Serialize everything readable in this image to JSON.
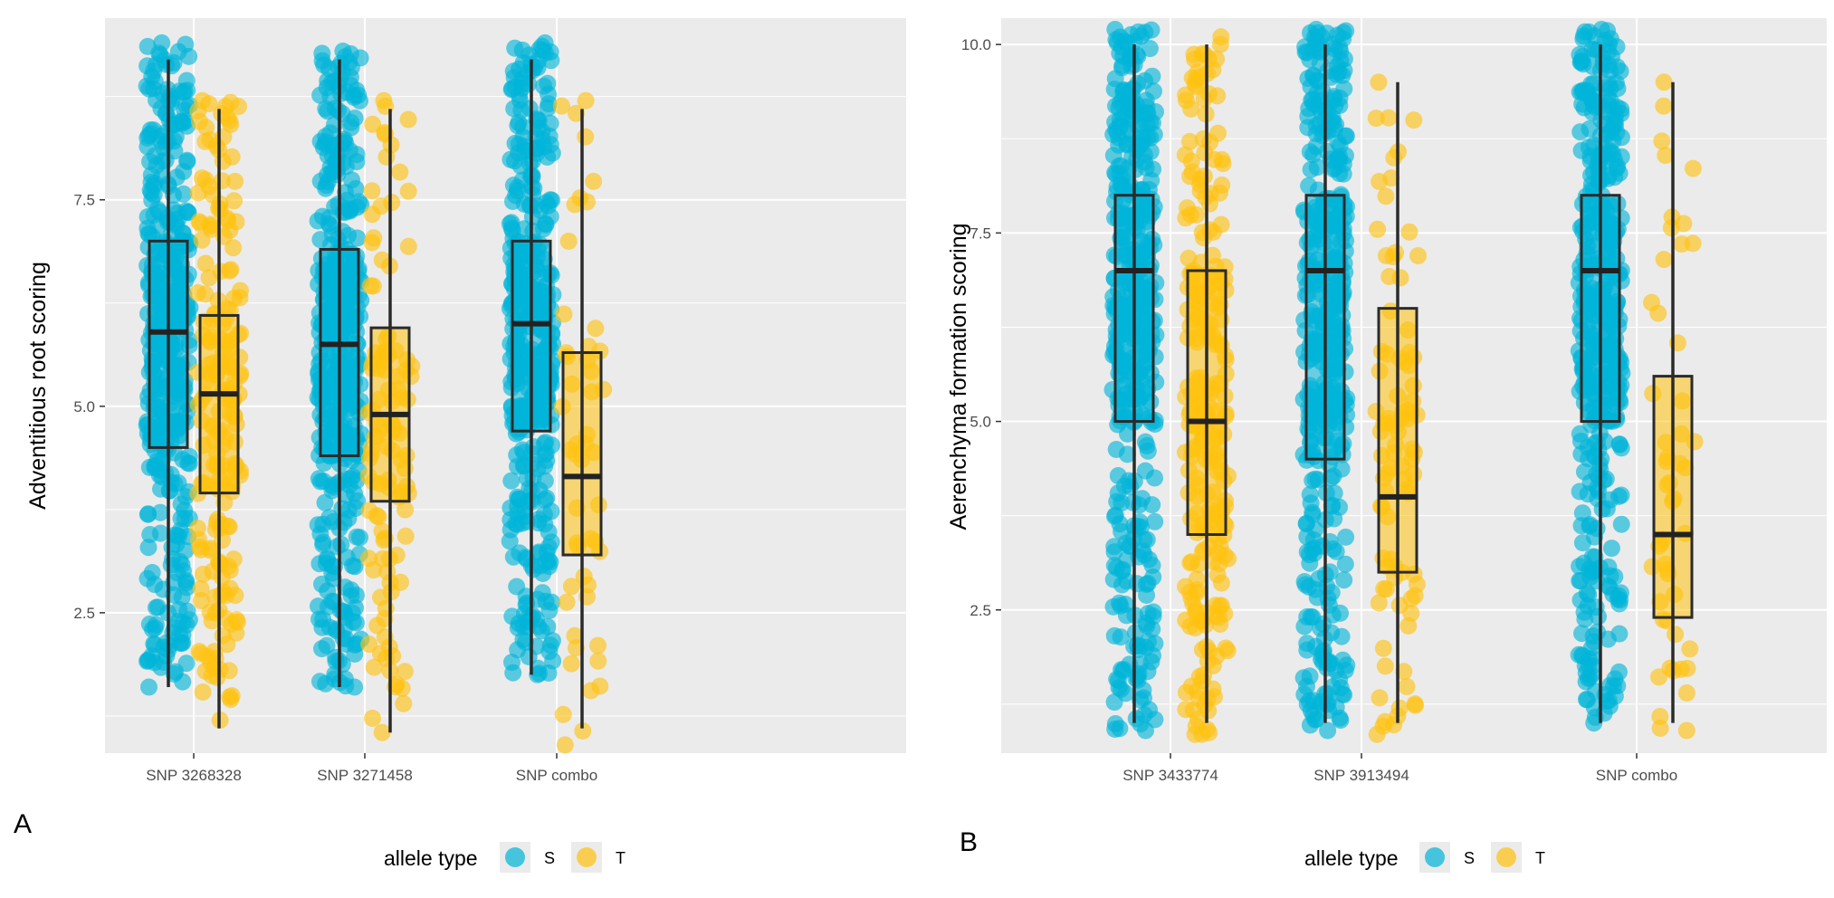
{
  "chart_data": [
    {
      "type": "box",
      "panel_label": "A",
      "ylabel": "Adventitious root scoring",
      "ylim": [
        0.8,
        9.7
      ],
      "yticks": [
        2.5,
        5.0,
        7.5
      ],
      "ytick_labels": [
        "2.5",
        "5.0",
        "7.5"
      ],
      "categories": [
        "SNP 3268328",
        "SNP 3271458",
        "SNP combo"
      ],
      "grid": true,
      "legend": {
        "title": "allele type",
        "position": "bottom",
        "labels": [
          "S",
          "T"
        ]
      },
      "colors": {
        "S": "#00B4D8",
        "T": "#FFC20E",
        "panel_bg": "#EBEBEB",
        "grid": "#FFFFFF",
        "box_line": "#2B2B2B"
      },
      "series": [
        {
          "name": "S",
          "boxes": [
            {
              "category": "SNP 3268328",
              "whisker_low": 1.6,
              "q1": 4.5,
              "median": 5.9,
              "q3": 7.0,
              "whisker_high": 9.2,
              "n": 420,
              "jitter_min": 1.6,
              "jitter_max": 9.4
            },
            {
              "category": "SNP 3271458",
              "whisker_low": 1.6,
              "q1": 4.4,
              "median": 5.75,
              "q3": 6.9,
              "whisker_high": 9.2,
              "n": 420,
              "jitter_min": 1.6,
              "jitter_max": 9.3
            },
            {
              "category": "SNP combo",
              "whisker_low": 1.75,
              "q1": 4.7,
              "median": 6.0,
              "q3": 7.0,
              "whisker_high": 9.2,
              "n": 420,
              "jitter_min": 1.75,
              "jitter_max": 9.4
            }
          ]
        },
        {
          "name": "T",
          "boxes": [
            {
              "category": "SNP 3268328",
              "whisker_low": 1.1,
              "q1": 3.95,
              "median": 5.15,
              "q3": 6.1,
              "whisker_high": 8.6,
              "n": 200,
              "jitter_min": 1.2,
              "jitter_max": 8.7
            },
            {
              "category": "SNP 3271458",
              "whisker_low": 1.05,
              "q1": 3.85,
              "median": 4.9,
              "q3": 5.95,
              "whisker_high": 8.6,
              "n": 110,
              "jitter_min": 1.05,
              "jitter_max": 8.7
            },
            {
              "category": "SNP combo",
              "whisker_low": 1.1,
              "q1": 3.2,
              "median": 4.15,
              "q3": 5.65,
              "whisker_high": 8.6,
              "n": 50,
              "jitter_min": 0.9,
              "jitter_max": 8.7
            }
          ]
        }
      ]
    },
    {
      "type": "box",
      "panel_label": "B",
      "ylabel": "Aerenchyma formation scoring",
      "ylim": [
        0.6,
        10.35
      ],
      "yticks": [
        2.5,
        5.0,
        7.5,
        10.0
      ],
      "ytick_labels": [
        "2.5",
        "5.0",
        "7.5",
        "10.0"
      ],
      "categories": [
        "SNP 3433774",
        "SNP 3913494",
        "SNP combo"
      ],
      "grid": true,
      "legend": {
        "title": "allele type",
        "position": "bottom",
        "labels": [
          "S",
          "T"
        ]
      },
      "colors": {
        "S": "#00B4D8",
        "T": "#FFC20E",
        "panel_bg": "#EBEBEB",
        "grid": "#FFFFFF",
        "box_line": "#2B2B2B"
      },
      "series": [
        {
          "name": "S",
          "boxes": [
            {
              "category": "SNP 3433774",
              "whisker_low": 1.0,
              "q1": 5.0,
              "median": 7.0,
              "q3": 8.0,
              "whisker_high": 10.0,
              "n": 420,
              "jitter_min": 0.9,
              "jitter_max": 10.2
            },
            {
              "category": "SNP 3913494",
              "whisker_low": 1.0,
              "q1": 4.5,
              "median": 7.0,
              "q3": 8.0,
              "whisker_high": 10.0,
              "n": 420,
              "jitter_min": 0.9,
              "jitter_max": 10.2
            },
            {
              "category": "SNP combo",
              "whisker_low": 1.0,
              "q1": 5.0,
              "median": 7.0,
              "q3": 8.0,
              "whisker_high": 10.0,
              "n": 420,
              "jitter_min": 1.0,
              "jitter_max": 10.2
            }
          ]
        },
        {
          "name": "T",
          "boxes": [
            {
              "category": "SNP 3433774",
              "whisker_low": 1.0,
              "q1": 3.5,
              "median": 5.0,
              "q3": 7.0,
              "whisker_high": 10.0,
              "n": 260,
              "jitter_min": 0.85,
              "jitter_max": 10.1
            },
            {
              "category": "SNP 3913494",
              "whisker_low": 1.0,
              "q1": 3.0,
              "median": 4.0,
              "q3": 6.5,
              "whisker_high": 9.5,
              "n": 90,
              "jitter_min": 0.85,
              "jitter_max": 9.5
            },
            {
              "category": "SNP combo",
              "whisker_low": 1.0,
              "q1": 2.4,
              "median": 3.5,
              "q3": 5.6,
              "whisker_high": 9.5,
              "n": 50,
              "jitter_min": 0.9,
              "jitter_max": 9.5
            }
          ]
        }
      ]
    }
  ]
}
